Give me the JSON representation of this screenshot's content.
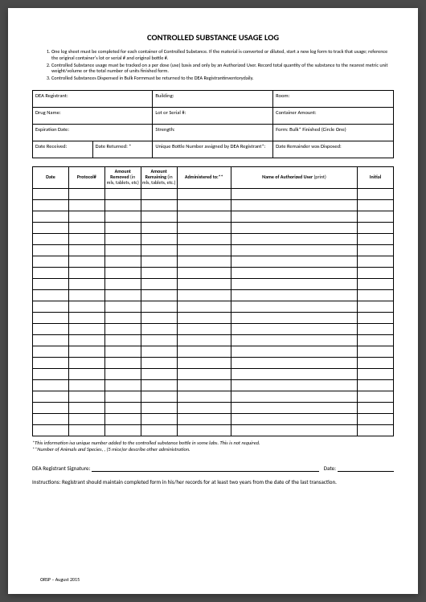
{
  "title": "CONTROLLED SUBSTANCE USAGE LOG",
  "instructions": [
    "One log sheet must be completed for each container of Controlled Substance. If the material is converted or diluted, start a new log form to track that usage; reference the original container's lot or serial # and original bottle #.",
    "Controlled Substance usage must be tracked on a per dose (use) basis and only by an Authorized User. Record total quantity of the substance to the nearest metric unit weight/volume or the total number of units finished form.",
    "Controlled Substances Dispensed in Bulk Formmust be returned to the DEA Registrantinventorydaily."
  ],
  "header": {
    "r1c1": "DEA Registrant:",
    "r1c2": "Building:",
    "r1c3": "Room:",
    "r2c1": "Drug Name:",
    "r2c2": "Lot or Serial #:",
    "r2c3": "Container Amount:",
    "r3c1": "Expiration Date:",
    "r3c2": "Strength:",
    "r3c3": "Form:     Bulk*          Finished (Circle One)",
    "r4c1": "Date Received:",
    "r4c2": "Date Returned: *",
    "r4c3": "Unique Bottle Number assigned by DEA Registrant*:",
    "r4c4": "Date Remainder was Disposed:"
  },
  "log_columns": {
    "date": "Date",
    "protocol": "Protocol#",
    "removed_b": "Amount Removed",
    "removed_n": " (in mls, tablets, etc)",
    "remaining_b": "Amount Remaining",
    "remaining_n": " (in mls, tablets, etc.)",
    "admin": "Administered to:**",
    "user_b": "Name of Authorized User",
    "user_n": " (print)",
    "initial": "Initial"
  },
  "log_row_count": 22,
  "notes": {
    "line1": "*This information isa unique number added to the controlled substance bottle in some labs.  This is not required.",
    "line2": "**Number of Animals and Species,  , (5 mice)or describe other administration."
  },
  "signature": {
    "label": "DEA Registrant Signature:",
    "date_label": "Date:"
  },
  "bottom_instructions": "Instructions:  Registrant should maintain completed form in his/her records for at least two years from the date of the last transaction.",
  "footer": "ORSP – August 2015",
  "col_widths": {
    "date": "10%",
    "protocol": "10%",
    "removed": "10%",
    "remaining": "10%",
    "admin": "15%",
    "user": "35%",
    "initial": "10%"
  }
}
